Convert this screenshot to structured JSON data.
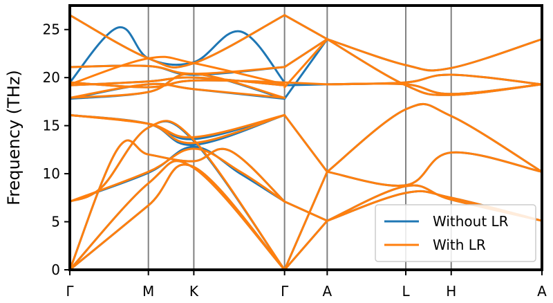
{
  "chart_data": {
    "type": "line",
    "title": "",
    "xlabel": "",
    "ylabel": "Frequency (THz)",
    "ylim": [
      0,
      27.5
    ],
    "yticks": [
      0,
      5,
      10,
      15,
      20,
      25
    ],
    "grid": false,
    "legend_position": "bottom-right",
    "x_path_positions": [
      0,
      0.737,
      1.163,
      2.014,
      2.414,
      3.151,
      3.577,
      4.428
    ],
    "x_tick_labels": [
      "Γ",
      "M",
      "K",
      "Γ",
      "A",
      "L",
      "H",
      "A"
    ],
    "series": [
      {
        "name": "Without LR",
        "color": "#1f77b4",
        "bands": [
          [
            [
              0,
              0
            ],
            [
              0.737,
              6.7
            ],
            [
              1.163,
              10.7
            ],
            [
              2.014,
              0
            ]
          ],
          [
            [
              0,
              0
            ],
            [
              0.737,
              9.0
            ],
            [
              1.163,
              10.6
            ],
            [
              2.014,
              0
            ]
          ],
          [
            [
              0,
              0
            ],
            [
              0.45,
              12.6
            ],
            [
              0.737,
              12.0
            ],
            [
              1.163,
              11.3
            ],
            [
              1.5,
              12.4
            ],
            [
              2.014,
              7.1
            ]
          ],
          [
            [
              0,
              7.1
            ],
            [
              0.737,
              10.1
            ],
            [
              1.163,
              12.8
            ],
            [
              1.6,
              10.0
            ],
            [
              2.014,
              7.1
            ]
          ],
          [
            [
              0,
              7.1
            ],
            [
              0.3,
              8.6
            ],
            [
              0.737,
              14.8
            ],
            [
              1.163,
              13.4
            ],
            [
              2.014,
              0
            ]
          ],
          [
            [
              0,
              16.1
            ],
            [
              0.737,
              15.2
            ],
            [
              1.163,
              13.0
            ],
            [
              2.014,
              16.1
            ]
          ],
          [
            [
              0,
              16.1
            ],
            [
              0.737,
              15.2
            ],
            [
              1.163,
              13.6
            ],
            [
              2.014,
              16.1
            ]
          ],
          [
            [
              0,
              17.8
            ],
            [
              0.737,
              18.5
            ],
            [
              1.163,
              20.4
            ],
            [
              2.014,
              17.8
            ]
          ],
          [
            [
              0,
              17.8
            ],
            [
              0.737,
              19.3
            ],
            [
              1.163,
              18.8
            ],
            [
              2.014,
              17.8
            ]
          ],
          [
            [
              0,
              19.2
            ],
            [
              0.737,
              19.6
            ],
            [
              1.163,
              20.0
            ],
            [
              2.014,
              19.2
            ]
          ],
          [
            [
              0,
              19.5
            ],
            [
              0.737,
              19.0
            ],
            [
              1.163,
              19.7
            ],
            [
              2.014,
              19.5
            ]
          ],
          [
            [
              0,
              21.1
            ],
            [
              0.737,
              21.2
            ],
            [
              1.163,
              20.3
            ],
            [
              2.014,
              21.1
            ]
          ],
          [
            [
              0,
              19.5
            ],
            [
              0.45,
              25.2
            ],
            [
              0.737,
              22.0
            ],
            [
              1.163,
              21.6
            ],
            [
              1.6,
              24.8
            ],
            [
              2.014,
              19.5
            ]
          ],
          [
            [
              0,
              26.5
            ],
            [
              0.737,
              22.0
            ],
            [
              1.163,
              21.5
            ],
            [
              2.014,
              26.5
            ]
          ],
          [
            [
              2.014,
              0
            ],
            [
              2.414,
              10.2
            ]
          ],
          [
            [
              2.014,
              0
            ],
            [
              2.414,
              5.1
            ]
          ],
          [
            [
              2.014,
              7.1
            ],
            [
              2.414,
              5.1
            ]
          ],
          [
            [
              2.014,
              16.1
            ],
            [
              2.414,
              10.2
            ]
          ],
          [
            [
              2.014,
              17.8
            ],
            [
              2.414,
              24.0
            ]
          ],
          [
            [
              2.014,
              19.2
            ],
            [
              2.414,
              19.3
            ]
          ],
          [
            [
              2.014,
              21.1
            ],
            [
              2.414,
              24.0
            ]
          ],
          [
            [
              2.014,
              26.5
            ],
            [
              2.414,
              24.0
            ]
          ],
          [
            [
              2.414,
              10.2
            ],
            [
              3.151,
              16.7
            ],
            [
              3.577,
              16.0
            ],
            [
              4.428,
              10.2
            ]
          ],
          [
            [
              2.414,
              10.2
            ],
            [
              3.151,
              8.8
            ],
            [
              3.577,
              12.2
            ],
            [
              4.428,
              10.2
            ]
          ],
          [
            [
              2.414,
              5.1
            ],
            [
              3.151,
              8.0
            ],
            [
              3.577,
              7.5
            ],
            [
              4.428,
              5.1
            ]
          ],
          [
            [
              2.414,
              5.1
            ],
            [
              3.151,
              8.7
            ],
            [
              3.577,
              7.3
            ],
            [
              4.428,
              5.1
            ]
          ],
          [
            [
              2.414,
              19.3
            ],
            [
              3.151,
              19.5
            ],
            [
              3.577,
              20.3
            ],
            [
              4.428,
              19.3
            ]
          ],
          [
            [
              2.414,
              19.3
            ],
            [
              3.151,
              19.3
            ],
            [
              3.577,
              18.3
            ],
            [
              4.428,
              19.3
            ]
          ],
          [
            [
              2.414,
              24.0
            ],
            [
              3.151,
              21.3
            ],
            [
              3.577,
              21.0
            ],
            [
              4.428,
              24.0
            ]
          ],
          [
            [
              2.414,
              24.0
            ],
            [
              3.151,
              19.2
            ],
            [
              3.577,
              18.2
            ],
            [
              4.428,
              19.3
            ]
          ]
        ]
      },
      {
        "name": "With LR",
        "color": "#ff7f0e",
        "bands": [
          [
            [
              0,
              0
            ],
            [
              0.737,
              6.7
            ],
            [
              1.163,
              10.7
            ],
            [
              2.014,
              0
            ]
          ],
          [
            [
              0,
              0
            ],
            [
              0.737,
              9.0
            ],
            [
              1.163,
              10.6
            ],
            [
              2.014,
              0
            ]
          ],
          [
            [
              0,
              0
            ],
            [
              0.45,
              12.6
            ],
            [
              0.737,
              12.0
            ],
            [
              1.163,
              11.3
            ],
            [
              1.5,
              12.4
            ],
            [
              2.014,
              7.1
            ]
          ],
          [
            [
              0,
              7.1
            ],
            [
              0.737,
              10.2
            ],
            [
              1.163,
              12.6
            ],
            [
              1.6,
              10.2
            ],
            [
              2.014,
              7.1
            ]
          ],
          [
            [
              0,
              7.1
            ],
            [
              0.3,
              8.6
            ],
            [
              0.737,
              14.8
            ],
            [
              1.163,
              13.5
            ],
            [
              2.014,
              0
            ]
          ],
          [
            [
              0,
              16.1
            ],
            [
              0.737,
              15.2
            ],
            [
              1.163,
              13.2
            ],
            [
              2.014,
              16.1
            ]
          ],
          [
            [
              0,
              16.1
            ],
            [
              0.737,
              15.2
            ],
            [
              1.163,
              13.8
            ],
            [
              2.014,
              16.1
            ]
          ],
          [
            [
              0,
              17.9
            ],
            [
              0.737,
              18.5
            ],
            [
              1.163,
              20.4
            ],
            [
              2.014,
              17.9
            ]
          ],
          [
            [
              0,
              17.9
            ],
            [
              0.737,
              19.3
            ],
            [
              1.163,
              18.8
            ],
            [
              2.014,
              17.9
            ]
          ],
          [
            [
              0,
              19.2
            ],
            [
              0.737,
              19.6
            ],
            [
              1.163,
              20.0
            ],
            [
              2.014,
              19.2
            ]
          ],
          [
            [
              0,
              19.5
            ],
            [
              0.737,
              19.0
            ],
            [
              1.163,
              19.7
            ],
            [
              2.014,
              19.5
            ]
          ],
          [
            [
              0,
              21.1
            ],
            [
              0.737,
              21.2
            ],
            [
              1.163,
              20.4
            ],
            [
              2.014,
              21.1
            ]
          ],
          [
            [
              0,
              19.3
            ],
            [
              0.737,
              22.0
            ],
            [
              1.163,
              21.5
            ],
            [
              2.014,
              19.3
            ]
          ],
          [
            [
              0,
              26.5
            ],
            [
              0.737,
              22.0
            ],
            [
              1.163,
              21.5
            ],
            [
              2.014,
              26.5
            ]
          ],
          [
            [
              2.014,
              0
            ],
            [
              2.414,
              10.2
            ]
          ],
          [
            [
              2.014,
              0
            ],
            [
              2.414,
              5.1
            ]
          ],
          [
            [
              2.014,
              7.1
            ],
            [
              2.414,
              5.1
            ]
          ],
          [
            [
              2.014,
              16.1
            ],
            [
              2.414,
              10.2
            ]
          ],
          [
            [
              2.014,
              19.0
            ],
            [
              2.414,
              24.0
            ]
          ],
          [
            [
              2.014,
              19.5
            ],
            [
              2.414,
              19.3
            ]
          ],
          [
            [
              2.014,
              21.1
            ],
            [
              2.414,
              24.0
            ]
          ],
          [
            [
              2.014,
              26.5
            ],
            [
              2.414,
              24.0
            ]
          ],
          [
            [
              2.414,
              10.2
            ],
            [
              3.151,
              16.7
            ],
            [
              3.577,
              16.0
            ],
            [
              4.428,
              10.2
            ]
          ],
          [
            [
              2.414,
              10.2
            ],
            [
              3.151,
              8.8
            ],
            [
              3.577,
              12.2
            ],
            [
              4.428,
              10.2
            ]
          ],
          [
            [
              2.414,
              5.1
            ],
            [
              3.151,
              8.0
            ],
            [
              3.577,
              7.5
            ],
            [
              4.428,
              5.1
            ]
          ],
          [
            [
              2.414,
              5.1
            ],
            [
              3.151,
              8.7
            ],
            [
              3.577,
              7.3
            ],
            [
              4.428,
              5.1
            ]
          ],
          [
            [
              2.414,
              19.3
            ],
            [
              3.151,
              19.5
            ],
            [
              3.577,
              20.3
            ],
            [
              4.428,
              19.3
            ]
          ],
          [
            [
              2.414,
              19.3
            ],
            [
              3.151,
              19.3
            ],
            [
              3.577,
              18.3
            ],
            [
              4.428,
              19.3
            ]
          ],
          [
            [
              2.414,
              24.0
            ],
            [
              3.151,
              21.3
            ],
            [
              3.577,
              21.0
            ],
            [
              4.428,
              24.0
            ]
          ],
          [
            [
              2.414,
              24.0
            ],
            [
              3.151,
              19.2
            ],
            [
              3.577,
              18.2
            ],
            [
              4.428,
              19.3
            ]
          ]
        ]
      }
    ]
  }
}
